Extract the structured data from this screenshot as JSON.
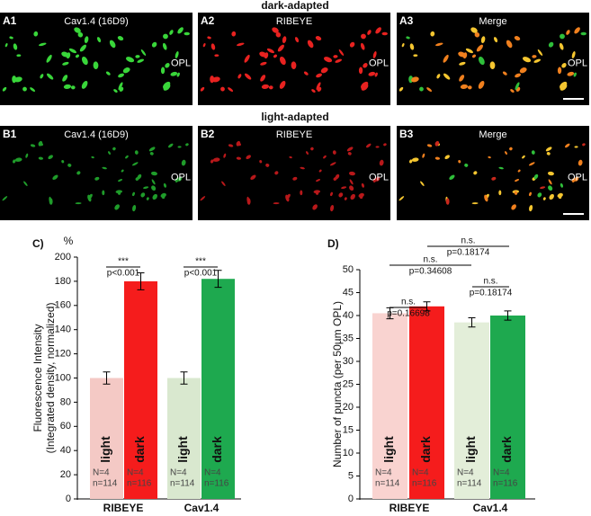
{
  "figure": {
    "rows": [
      {
        "heading": "dark-adapted",
        "panels": [
          {
            "id": "A1",
            "label": "Cav1.4 (16D9)",
            "region": "OPL"
          },
          {
            "id": "A2",
            "label": "RIBEYE",
            "region": "OPL"
          },
          {
            "id": "A3",
            "label": "Merge",
            "region": "OPL"
          }
        ]
      },
      {
        "heading": "light-adapted",
        "panels": [
          {
            "id": "B1",
            "label": "Cav1.4 (16D9)",
            "region": "OPL"
          },
          {
            "id": "B2",
            "label": "RIBEYE",
            "region": "OPL"
          },
          {
            "id": "B3",
            "label": "Merge",
            "region": "OPL"
          }
        ]
      }
    ]
  },
  "chart_data": [
    {
      "type": "bar",
      "title": "C)",
      "unit": "%",
      "ylabel": [
        "Fluorescence Intensity",
        "(Integrated density, normalized)"
      ],
      "groups": [
        "RIBEYE",
        "Cav1.4"
      ],
      "categories": [
        "light",
        "dark",
        "light",
        "dark"
      ],
      "values": [
        100,
        180,
        100,
        182
      ],
      "errors": [
        5,
        7,
        5,
        7
      ],
      "colors": [
        "#f4c9c5",
        "#f51c1c",
        "#d9e8cf",
        "#1ea94f"
      ],
      "notes": [
        [
          "N=4",
          "n=114"
        ],
        [
          "N=4",
          "n=116"
        ],
        [
          "N=4",
          "n=114"
        ],
        [
          "N=4",
          "n=116"
        ]
      ],
      "ylim": [
        0,
        200
      ],
      "yticks": [
        0,
        20,
        40,
        60,
        80,
        100,
        120,
        140,
        160,
        180,
        200
      ],
      "comparisons": [
        {
          "mark": "***",
          "p": "p<0.001"
        },
        {
          "mark": "***",
          "p": "p<0.001"
        }
      ]
    },
    {
      "type": "bar",
      "title": "D)",
      "ylabel": [
        "Number of puncta (per 50µm OPL)"
      ],
      "groups": [
        "RIBEYE",
        "Cav1.4"
      ],
      "categories": [
        "light",
        "dark",
        "light",
        "dark"
      ],
      "values": [
        40.5,
        42,
        38.5,
        40
      ],
      "errors": [
        1.2,
        1,
        1,
        1
      ],
      "colors": [
        "#f9d3d0",
        "#f51c1c",
        "#e3eed9",
        "#1ea94f"
      ],
      "notes": [
        [
          "N=4",
          "n=114"
        ],
        [
          "N=4",
          "n=116"
        ],
        [
          "N=4",
          "n=114"
        ],
        [
          "N=4",
          "n=116"
        ]
      ],
      "ylim": [
        0,
        50
      ],
      "yticks": [
        0,
        5,
        10,
        15,
        20,
        25,
        30,
        35,
        40,
        45,
        50
      ],
      "comparisons": [
        {
          "mark": "n.s.",
          "p": "p=0.16698"
        },
        {
          "mark": "n.s.",
          "p": "p=0.18174"
        },
        {
          "mark": "n.s.",
          "p": "p=0.34608"
        },
        {
          "mark": "n.s.",
          "p": "p=0.18174"
        }
      ]
    }
  ]
}
